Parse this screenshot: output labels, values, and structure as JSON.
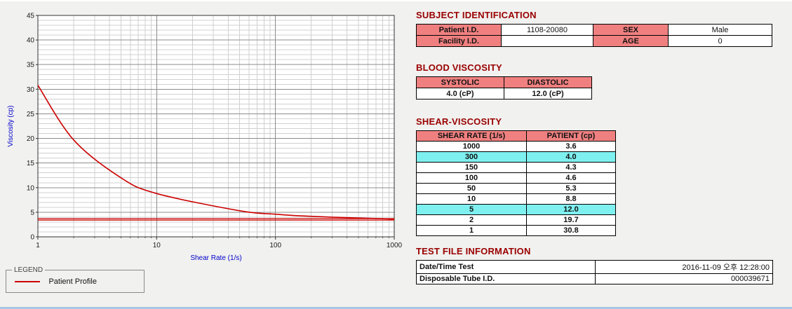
{
  "colors": {
    "heading": "#990000",
    "table_header_bg": "#f08080",
    "row_highlight_bg": "#7ff0f0",
    "series": "#cc0000",
    "axis_label": "#0000cc",
    "bottom_accent": "#a8c6e6"
  },
  "chart": {
    "legend_box_label": "LEGEND",
    "legend_series_label": "Patient Profile"
  },
  "chart_data": {
    "type": "line",
    "title": "",
    "xlabel": "Shear Rate (1/s)",
    "ylabel": "Viscosity (cp)",
    "x_scale": "log",
    "xlim": [
      1,
      1000
    ],
    "ylim": [
      0,
      45
    ],
    "y_tick_step": 5,
    "x_ticks": [
      1,
      10,
      100,
      1000
    ],
    "grid": true,
    "legend_position": "bottom-left-box",
    "series": [
      {
        "name": "Patient Profile",
        "color": "#cc0000",
        "x": [
          1,
          2,
          5,
          10,
          50,
          100,
          150,
          300,
          1000
        ],
        "y": [
          30.8,
          19.7,
          12.0,
          8.8,
          5.3,
          4.6,
          4.3,
          4.0,
          3.6
        ]
      }
    ],
    "reference_lines": [
      {
        "y": 3.4,
        "color": "#cc0000"
      },
      {
        "y": 3.7,
        "color": "#cc0000"
      }
    ]
  },
  "subject_identification": {
    "title": "SUBJECT IDENTIFICATION",
    "rows": [
      {
        "label": "Patient I.D.",
        "value": "1108-20080",
        "label2": "SEX",
        "value2": "Male"
      },
      {
        "label": "Facility I.D.",
        "value": "",
        "label2": "AGE",
        "value2": "0"
      }
    ]
  },
  "blood_viscosity": {
    "title": "BLOOD VISCOSITY",
    "headers": [
      "SYSTOLIC",
      "DIASTOLIC"
    ],
    "values": [
      "4.0 (cP)",
      "12.0 (cP)"
    ]
  },
  "shear_viscosity": {
    "title": "SHEAR-VISCOSITY",
    "headers": [
      "SHEAR RATE (1/s)",
      "PATIENT (cp)"
    ],
    "rows": [
      {
        "rate": "1000",
        "value": "3.6",
        "highlight": false
      },
      {
        "rate": "300",
        "value": "4.0",
        "highlight": true
      },
      {
        "rate": "150",
        "value": "4.3",
        "highlight": false
      },
      {
        "rate": "100",
        "value": "4.6",
        "highlight": false
      },
      {
        "rate": "50",
        "value": "5.3",
        "highlight": false
      },
      {
        "rate": "10",
        "value": "8.8",
        "highlight": false
      },
      {
        "rate": "5",
        "value": "12.0",
        "highlight": true
      },
      {
        "rate": "2",
        "value": "19.7",
        "highlight": false
      },
      {
        "rate": "1",
        "value": "30.8",
        "highlight": false
      }
    ]
  },
  "test_file_information": {
    "title": "TEST FILE INFORMATION",
    "rows": [
      {
        "label": "Date/Time Test",
        "value": "2016-11-09 오후 12:28:00"
      },
      {
        "label": "Disposable Tube I.D.",
        "value": "000039671"
      }
    ]
  }
}
